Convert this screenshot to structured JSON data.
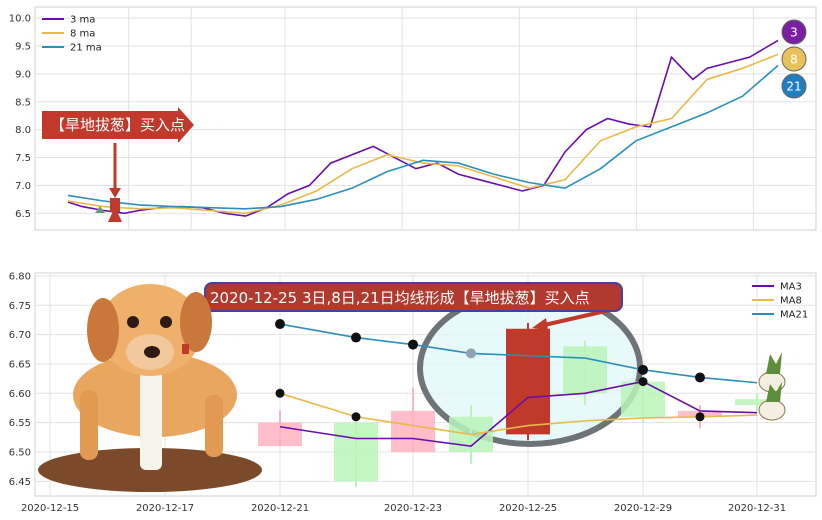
{
  "chart_data": [
    {
      "type": "line",
      "panel": "top",
      "y_ticks": [
        "10.0",
        "9.5",
        "9.0",
        "8.5",
        "8.0",
        "7.5",
        "7.0",
        "6.5"
      ],
      "ylim": [
        6.2,
        10.2
      ],
      "grid": true,
      "legend_position": "top-left",
      "legend": [
        "3 ma",
        "8 ma",
        "21 ma"
      ],
      "series": [
        {
          "name": "3 ma",
          "color": "#6a0dad",
          "x": [
            0,
            0.02,
            0.05,
            0.08,
            0.1,
            0.13,
            0.16,
            0.19,
            0.22,
            0.25,
            0.28,
            0.31,
            0.34,
            0.37,
            0.4,
            0.43,
            0.46,
            0.49,
            0.52,
            0.55,
            0.58,
            0.61,
            0.64,
            0.67,
            0.7,
            0.73,
            0.76,
            0.79,
            0.82,
            0.85,
            0.88,
            0.9,
            0.93,
            0.96,
            1.0
          ],
          "y": [
            6.7,
            6.62,
            6.55,
            6.5,
            6.55,
            6.6,
            6.62,
            6.6,
            6.5,
            6.45,
            6.6,
            6.85,
            7.0,
            7.4,
            7.55,
            7.7,
            7.5,
            7.3,
            7.4,
            7.2,
            7.1,
            7.0,
            6.9,
            7.0,
            7.6,
            8.0,
            8.2,
            8.1,
            8.05,
            9.3,
            8.9,
            9.1,
            9.2,
            9.3,
            9.6
          ]
        },
        {
          "name": "8 ma",
          "color": "#e9b949",
          "x": [
            0,
            0.05,
            0.1,
            0.15,
            0.2,
            0.25,
            0.3,
            0.35,
            0.4,
            0.45,
            0.5,
            0.55,
            0.6,
            0.65,
            0.7,
            0.75,
            0.8,
            0.85,
            0.9,
            0.95,
            1.0
          ],
          "y": [
            6.72,
            6.62,
            6.58,
            6.6,
            6.55,
            6.5,
            6.65,
            6.9,
            7.3,
            7.55,
            7.4,
            7.35,
            7.15,
            6.95,
            7.1,
            7.8,
            8.05,
            8.2,
            8.9,
            9.1,
            9.35
          ]
        },
        {
          "name": "21 ma",
          "color": "#2a8fbd",
          "x": [
            0,
            0.05,
            0.1,
            0.15,
            0.2,
            0.25,
            0.3,
            0.35,
            0.4,
            0.45,
            0.5,
            0.55,
            0.6,
            0.65,
            0.7,
            0.75,
            0.8,
            0.85,
            0.9,
            0.95,
            1.0
          ],
          "y": [
            6.82,
            6.72,
            6.65,
            6.62,
            6.6,
            6.58,
            6.62,
            6.75,
            6.95,
            7.25,
            7.45,
            7.4,
            7.2,
            7.05,
            6.95,
            7.3,
            7.8,
            8.05,
            8.3,
            8.6,
            9.15
          ]
        }
      ],
      "annotation": "【旱地拔葱】买入点",
      "badges": [
        {
          "text": "3",
          "color": "#7a1fa2"
        },
        {
          "text": "8",
          "color": "#e8c15a"
        },
        {
          "text": "21",
          "color": "#1f7dc0"
        }
      ]
    },
    {
      "type": "candlestick",
      "panel": "bottom",
      "title": "2020-12-25 3日,8日,21日均线形成【旱地拔葱】买入点",
      "x_ticks": [
        "2020-12-15",
        "2020-12-17",
        "2020-12-21",
        "2020-12-23",
        "2020-12-25",
        "2020-12-29",
        "2020-12-31"
      ],
      "y_ticks": [
        "6.80",
        "6.75",
        "6.70",
        "6.65",
        "6.60",
        "6.55",
        "6.50",
        "6.45"
      ],
      "ylim": [
        6.425,
        6.805
      ],
      "grid": true,
      "legend_position": "top-right",
      "legend": [
        "MA3",
        "MA8",
        "MA21"
      ],
      "candles": [
        {
          "date": "2020-12-21",
          "open": 6.55,
          "close": 6.51,
          "high": 6.57,
          "low": 6.51
        },
        {
          "date": "2020-12-22",
          "open": 6.45,
          "close": 6.55,
          "high": 6.56,
          "low": 6.44
        },
        {
          "date": "2020-12-23",
          "open": 6.57,
          "close": 6.5,
          "high": 6.61,
          "low": 6.5
        },
        {
          "date": "2020-12-24",
          "open": 6.5,
          "close": 6.56,
          "high": 6.58,
          "low": 6.48
        },
        {
          "date": "2020-12-25",
          "open": 6.71,
          "close": 6.53,
          "high": 6.72,
          "low": 6.52
        },
        {
          "date": "2020-12-28",
          "open": 6.6,
          "close": 6.68,
          "high": 6.69,
          "low": 6.58
        },
        {
          "date": "2020-12-29",
          "open": 6.56,
          "close": 6.62,
          "high": 6.63,
          "low": 6.55
        },
        {
          "date": "2020-12-30",
          "open": 6.57,
          "close": 6.56,
          "high": 6.58,
          "low": 6.54
        },
        {
          "date": "2020-12-31",
          "open": 6.58,
          "close": 6.59,
          "high": 6.6,
          "low": 6.57
        }
      ],
      "series": [
        {
          "name": "MA3",
          "color": "#6a0dad",
          "values": [
            6.543,
            6.523,
            6.523,
            6.51,
            6.593,
            6.6,
            6.62,
            6.57,
            6.567
          ]
        },
        {
          "name": "MA8",
          "color": "#e9b949",
          "values": [
            6.6,
            6.56,
            6.545,
            6.53,
            6.545,
            6.553,
            6.558,
            6.56,
            6.563
          ]
        },
        {
          "name": "MA21",
          "color": "#2a8fbd",
          "values": [
            6.718,
            6.695,
            6.683,
            6.668,
            6.664,
            6.66,
            6.64,
            6.627,
            6.618
          ]
        }
      ]
    }
  ]
}
